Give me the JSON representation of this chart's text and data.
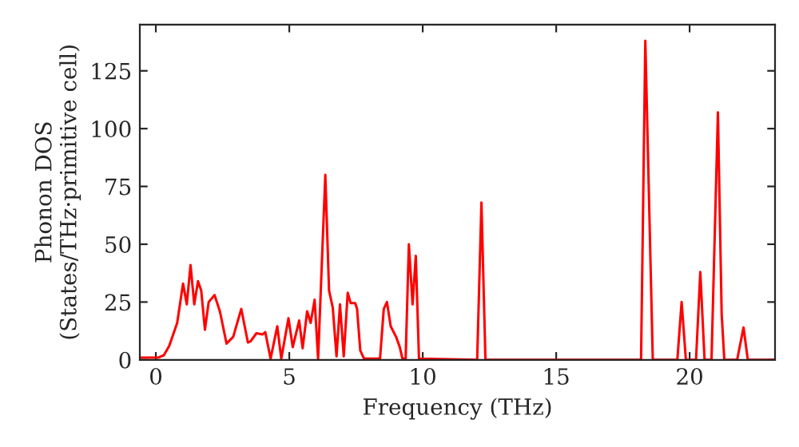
{
  "chart_data": {
    "type": "line",
    "xlabel": "Frequency (THz)",
    "ylabel": "Phonon DOS\n(States/THz·primitive cell)",
    "x": [
      -0.6,
      0.1,
      0.3,
      0.5,
      0.8,
      1.02,
      1.16,
      1.3,
      1.44,
      1.58,
      1.7,
      1.84,
      1.98,
      2.2,
      2.4,
      2.65,
      2.9,
      3.2,
      3.45,
      3.55,
      3.77,
      4.0,
      4.1,
      4.3,
      4.55,
      4.7,
      4.97,
      5.13,
      5.37,
      5.5,
      5.67,
      5.8,
      5.95,
      6.08,
      6.35,
      6.49,
      6.63,
      6.77,
      6.9,
      7.04,
      7.19,
      7.3,
      7.47,
      7.54,
      7.66,
      7.8,
      8.4,
      8.54,
      8.66,
      8.8,
      9.0,
      9.14,
      9.24,
      9.36,
      9.48,
      9.62,
      9.74,
      9.86,
      12.04,
      12.2,
      12.35,
      18.18,
      18.34,
      18.62,
      19.54,
      19.7,
      19.86,
      20.24,
      20.4,
      20.56,
      20.82,
      21.06,
      21.2,
      21.3,
      21.78,
      22.02,
      22.18,
      23.2
    ],
    "series": [
      {
        "color": "#ff0000",
        "values": [
          1,
          1,
          2,
          6,
          16,
          33,
          24,
          41,
          24,
          34,
          30,
          13,
          25,
          28,
          21,
          7,
          10,
          22,
          7.5,
          8,
          11.5,
          11,
          12,
          0.5,
          14.5,
          0.5,
          18,
          5.5,
          17,
          5,
          21,
          16,
          26,
          0.5,
          80,
          30,
          22.5,
          1.5,
          24,
          1.5,
          29,
          24.5,
          24.5,
          22,
          4,
          0.5,
          0.5,
          22,
          25,
          14.5,
          10,
          5.5,
          0.5,
          0.5,
          50,
          24,
          45,
          0.5,
          0,
          68,
          0,
          0,
          138,
          0,
          0,
          25,
          0,
          0,
          38,
          0,
          0,
          107,
          20,
          0,
          0,
          14,
          0,
          0
        ]
      }
    ],
    "xlim": [
      -0.6,
      23.2
    ],
    "ylim": [
      0,
      145
    ],
    "xticks": [
      0,
      5,
      10,
      15,
      20
    ],
    "yticks": [
      0,
      25,
      50,
      75,
      100,
      125
    ],
    "grid": false,
    "legend": false,
    "line_style": "solid",
    "marker": "none"
  }
}
